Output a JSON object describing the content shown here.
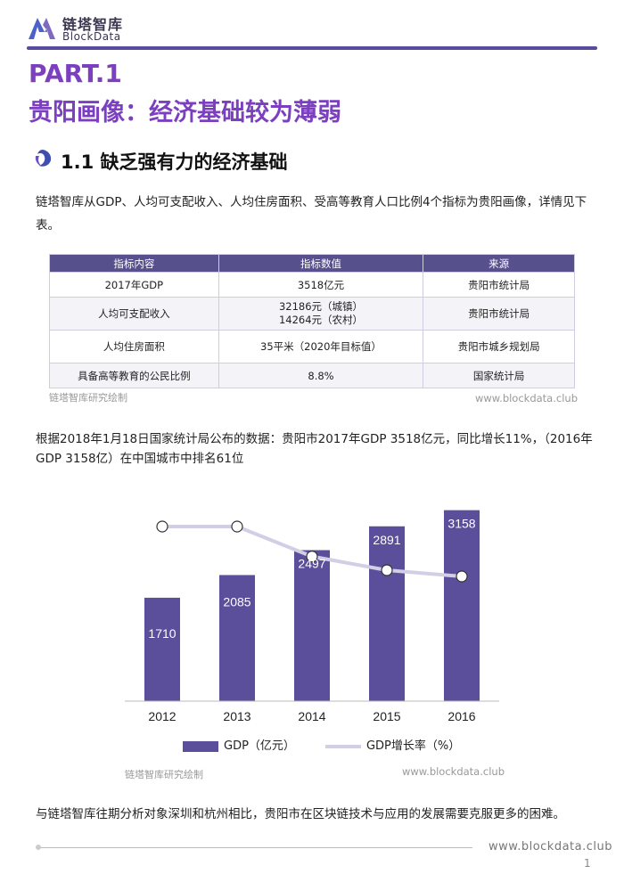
{
  "brand": {
    "name_cn": "链塔智库",
    "name_en": "BlockData"
  },
  "part_title": "PART.1",
  "page_heading": "贵阳画像：经济基础较为薄弱",
  "section": {
    "heading": "1.1 缺乏强有力的经济基础"
  },
  "intro_text": "链塔智库从GDP、人均可支配收入、人均住房面积、受高等教育人口比例4个指标为贵阳画像，详情见下表。",
  "table": {
    "headers": [
      "指标内容",
      "指标数值",
      "来源"
    ],
    "rows": [
      {
        "item": "2017年GDP",
        "value": "3518亿元",
        "value2": "",
        "source": "贵阳市统计局"
      },
      {
        "item": "人均可支配收入",
        "value": "32186元（城镇）",
        "value2": "14264元（农村）",
        "source": "贵阳市统计局"
      },
      {
        "item": "人均住房面积",
        "value": "35平米（2020年目标值）",
        "value2": "",
        "source": "贵阳市城乡规划局"
      },
      {
        "item": "具备高等教育的公民比例",
        "value": "8.8%",
        "value2": "",
        "source": "国家统计局"
      }
    ],
    "credit_left": "链塔智库研究绘制",
    "credit_right": "www.blockdata.club"
  },
  "description": "根据2018年1月18日国家统计局公布的数据：贵阳市2017年GDP 3518亿元，同比增长11%，（2016年 GDP 3158亿）在中国城市中排名61位",
  "chart_data": {
    "type": "bar",
    "categories": [
      "2012",
      "2013",
      "2014",
      "2015",
      "2016"
    ],
    "series": [
      {
        "name": "GDP（亿元）",
        "type": "bar",
        "values": [
          1710,
          2085,
          2497,
          2891,
          3158
        ],
        "color": "#5b4f9b"
      },
      {
        "name": "GDP增长率（%）",
        "type": "line",
        "values": [
          14,
          14,
          11.6,
          10.5,
          10
        ],
        "color": "#d0cfe6"
      }
    ],
    "ylim": [
      0,
      3300
    ],
    "line_ylim": [
      0,
      16
    ],
    "legend": "bottom",
    "credit_left": "链塔智库研究绘制",
    "credit_right": "www.blockdata.club"
  },
  "conclusion": "与链塔智库往期分析对象深圳和杭州相比，贵阳市在区块链技术与应用的发展需要克服更多的困难。",
  "footer": {
    "url": "www.blockdata.club",
    "page": "1"
  }
}
